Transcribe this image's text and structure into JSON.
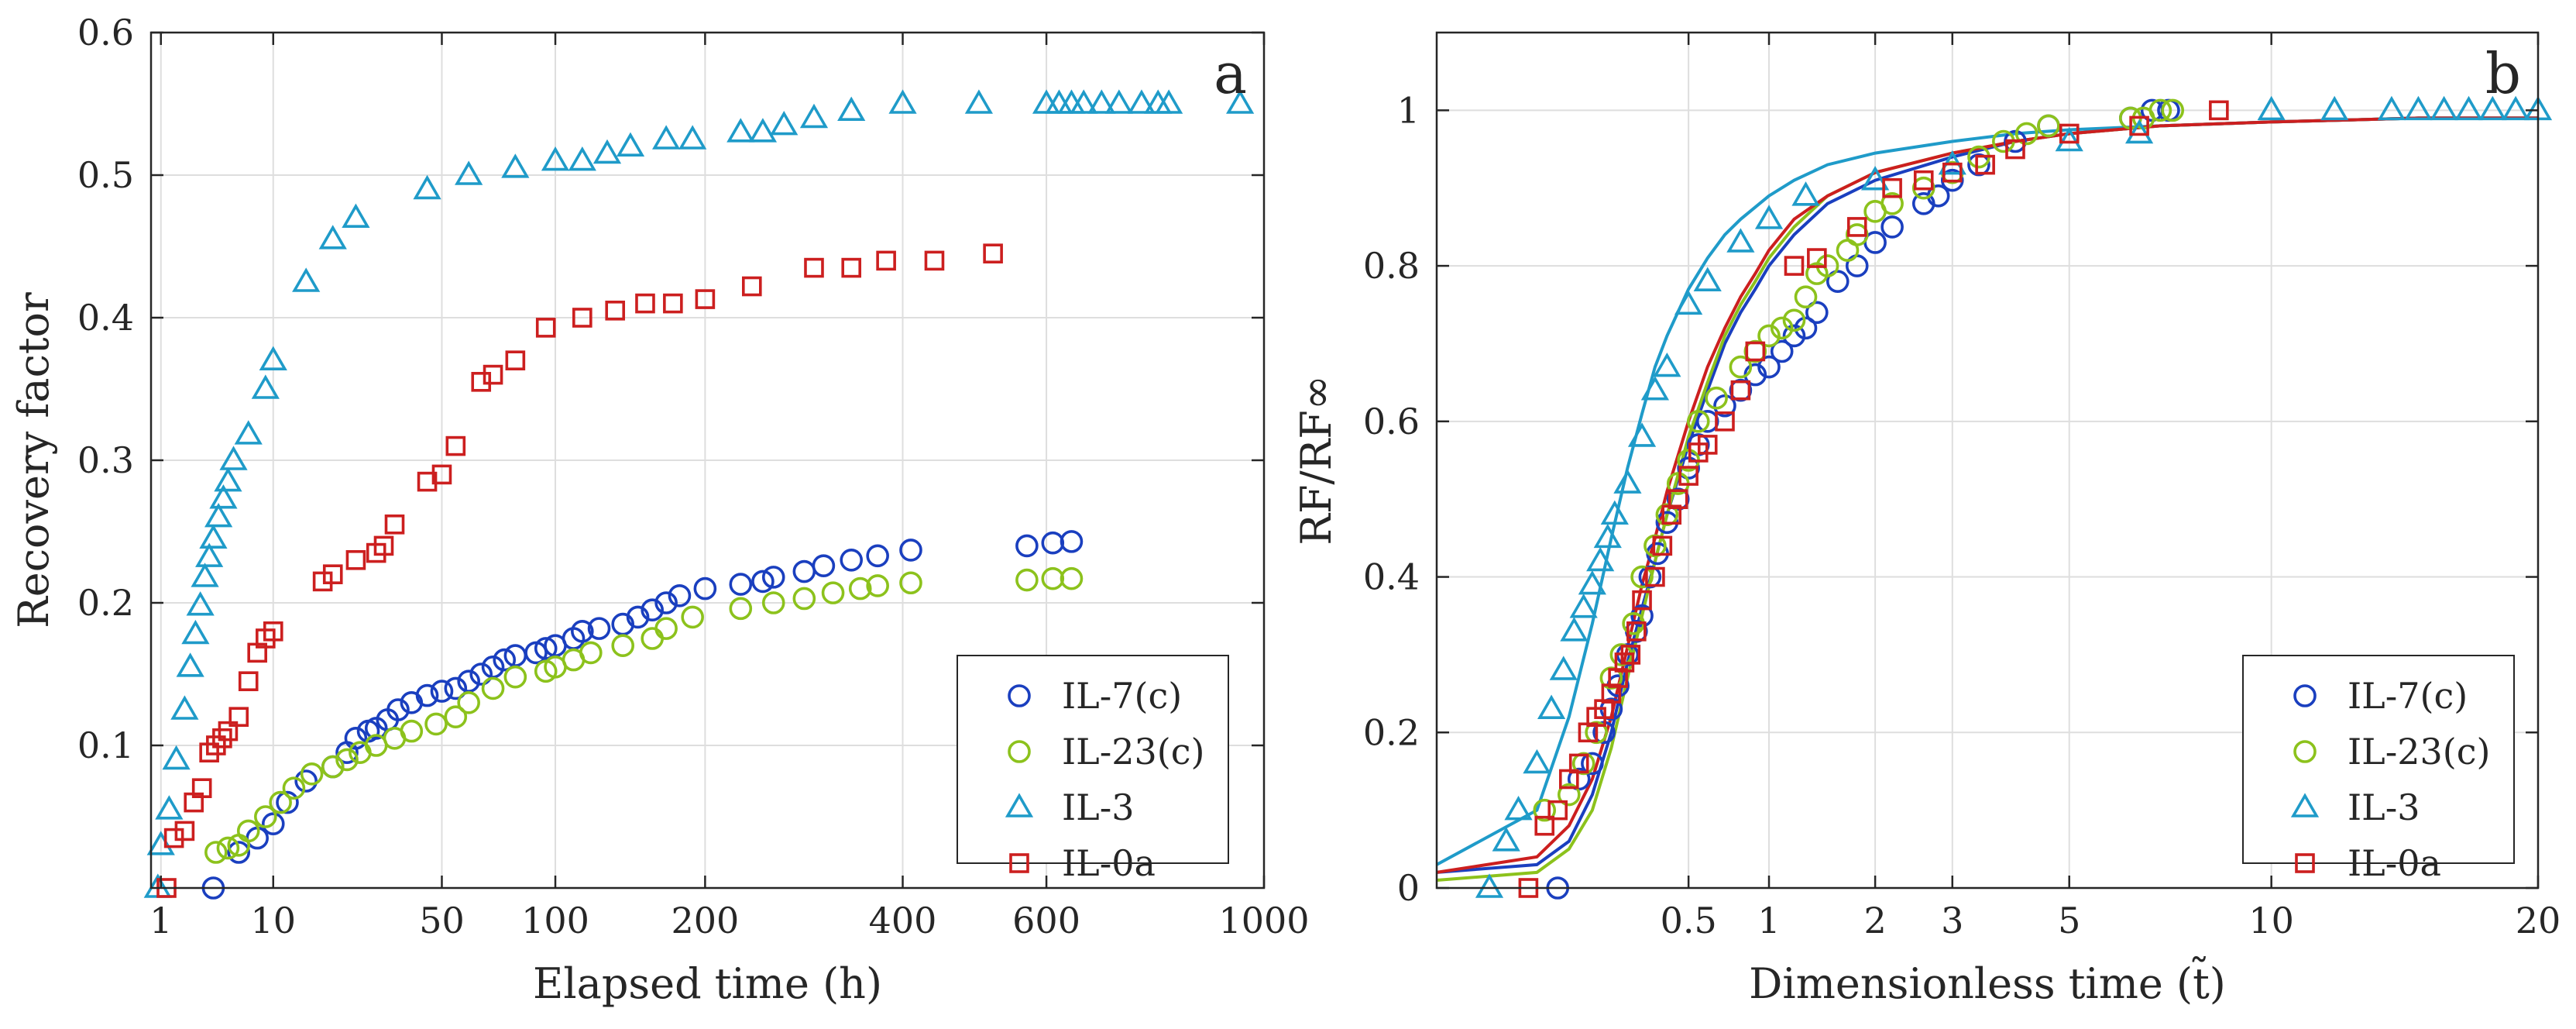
{
  "colors": {
    "IL-7(c)": "#1a3fbf",
    "IL-23(c)": "#8cc21c",
    "IL-3": "#1f9bc9",
    "IL-0a": "#cc1f1f",
    "grid": "#dedede",
    "axis": "#262626"
  },
  "chart_data": [
    {
      "type": "scatter",
      "panel_label": "a",
      "title": "",
      "xlabel": "Elapsed time (h)",
      "ylabel": "Recovery factor",
      "xscale": "power-0.4",
      "xlim": [
        0.7,
        1000
      ],
      "ylim": [
        0,
        0.6
      ],
      "xticks": [
        1,
        10,
        50,
        100,
        200,
        400,
        600,
        1000
      ],
      "xtick_labels": [
        "1",
        "10",
        "50",
        "100",
        "200",
        "400",
        "600",
        "1000"
      ],
      "yticks": [
        0.1,
        0.2,
        0.3,
        0.4,
        0.5,
        0.6
      ],
      "ytick_labels": [
        "0.1",
        "0.2",
        "0.3",
        "0.4",
        "0.5",
        "0.6"
      ],
      "grid": true,
      "legend_position": "bottom-right",
      "series": [
        {
          "name": "IL-7(c)",
          "marker": "circle",
          "x": [
            3.8,
            6,
            8,
            10,
            12,
            15,
            20,
            23,
            25,
            28,
            30,
            33,
            36,
            40,
            45,
            50,
            55,
            60,
            65,
            70,
            75,
            80,
            90,
            95,
            100,
            110,
            115,
            125,
            140,
            150,
            160,
            170,
            180,
            200,
            230,
            250,
            260,
            290,
            310,
            340,
            370,
            410,
            570,
            610,
            640
          ],
          "y": [
            0,
            0.025,
            0.035,
            0.045,
            0.06,
            0.075,
            0.085,
            0.095,
            0.105,
            0.11,
            0.112,
            0.118,
            0.125,
            0.13,
            0.135,
            0.138,
            0.14,
            0.145,
            0.15,
            0.155,
            0.16,
            0.163,
            0.165,
            0.168,
            0.17,
            0.175,
            0.18,
            0.182,
            0.185,
            0.19,
            0.195,
            0.2,
            0.205,
            0.21,
            0.213,
            0.215,
            0.218,
            0.222,
            0.226,
            0.23,
            0.233,
            0.237,
            0.24,
            0.242,
            0.243
          ]
        },
        {
          "name": "IL-23(c)",
          "marker": "circle",
          "x": [
            4,
            5,
            6,
            7,
            9,
            11,
            13,
            16,
            20,
            23,
            26,
            30,
            35,
            40,
            48,
            55,
            60,
            70,
            80,
            95,
            100,
            110,
            120,
            140,
            160,
            170,
            190,
            230,
            260,
            290,
            320,
            350,
            370,
            410,
            570,
            610,
            640
          ],
          "y": [
            0.025,
            0.028,
            0.03,
            0.04,
            0.05,
            0.06,
            0.07,
            0.08,
            0.085,
            0.09,
            0.095,
            0.1,
            0.105,
            0.11,
            0.115,
            0.12,
            0.13,
            0.14,
            0.148,
            0.152,
            0.155,
            0.16,
            0.165,
            0.17,
            0.175,
            0.182,
            0.19,
            0.196,
            0.2,
            0.203,
            0.207,
            0.21,
            0.212,
            0.214,
            0.216,
            0.217,
            0.217
          ]
        },
        {
          "name": "IL-3",
          "marker": "triangle",
          "x": [
            0.9,
            1,
            1.3,
            1.6,
            2,
            2.3,
            2.6,
            2.9,
            3.2,
            3.5,
            3.8,
            4.2,
            4.6,
            5,
            5.5,
            7,
            9,
            10,
            15,
            20,
            25,
            45,
            60,
            80,
            100,
            115,
            130,
            145,
            170,
            190,
            230,
            250,
            270,
            300,
            340,
            400,
            500,
            600,
            620,
            640,
            660,
            690,
            720,
            760,
            790,
            810,
            950
          ],
          "y": [
            0,
            0.03,
            0.055,
            0.09,
            0.125,
            0.155,
            0.178,
            0.198,
            0.218,
            0.232,
            0.245,
            0.26,
            0.273,
            0.285,
            0.3,
            0.318,
            0.35,
            0.37,
            0.425,
            0.455,
            0.47,
            0.49,
            0.5,
            0.505,
            0.51,
            0.51,
            0.515,
            0.52,
            0.525,
            0.525,
            0.53,
            0.53,
            0.535,
            0.54,
            0.545,
            0.55,
            0.55,
            0.55,
            0.55,
            0.55,
            0.55,
            0.55,
            0.55,
            0.55,
            0.55,
            0.55,
            0.55
          ]
        },
        {
          "name": "IL-0a",
          "marker": "square",
          "x": [
            1.2,
            1.5,
            2,
            2.5,
            3,
            3.5,
            4,
            4.5,
            5,
            6,
            7,
            8,
            9,
            10,
            18,
            20,
            25,
            30,
            32,
            35,
            45,
            50,
            55,
            65,
            70,
            80,
            95,
            115,
            135,
            155,
            175,
            200,
            240,
            300,
            340,
            380,
            440,
            520
          ],
          "y": [
            0,
            0.035,
            0.04,
            0.06,
            0.07,
            0.095,
            0.1,
            0.105,
            0.11,
            0.12,
            0.145,
            0.165,
            0.175,
            0.18,
            0.215,
            0.22,
            0.23,
            0.235,
            0.24,
            0.255,
            0.285,
            0.29,
            0.31,
            0.355,
            0.36,
            0.37,
            0.393,
            0.4,
            0.405,
            0.41,
            0.41,
            0.413,
            0.422,
            0.435,
            0.435,
            0.44,
            0.44,
            0.445
          ]
        }
      ]
    },
    {
      "type": "scatter",
      "panel_label": "b",
      "title": "",
      "xlabel": "Dimensionless time (t̃)",
      "ylabel": "RF/RF∞",
      "xscale": "power-0.4",
      "xlim": [
        0,
        20
      ],
      "ylim": [
        0,
        1.1
      ],
      "xticks": [
        0.5,
        1,
        2,
        3,
        5,
        10,
        20
      ],
      "xtick_labels": [
        "0.5",
        "1",
        "2",
        "3",
        "5",
        "10",
        "20"
      ],
      "yticks": [
        0,
        0.2,
        0.4,
        0.6,
        0.8,
        1
      ],
      "ytick_labels": [
        "0",
        "0.2",
        "0.4",
        "0.6",
        "0.8",
        "1"
      ],
      "grid": true,
      "legend_position": "bottom-right",
      "series": [
        {
          "name": "IL-7(c)",
          "marker": "circle",
          "x": [
            0.08,
            0.12,
            0.15,
            0.18,
            0.2,
            0.22,
            0.25,
            0.28,
            0.3,
            0.33,
            0.36,
            0.4,
            0.45,
            0.5,
            0.55,
            0.6,
            0.7,
            0.8,
            0.9,
            1,
            1.1,
            1.2,
            1.3,
            1.4,
            1.6,
            1.8,
            2,
            2.2,
            2.6,
            2.8,
            3,
            3.4,
            4,
            4.6,
            6.3,
            6.8,
            7.2
          ],
          "y": [
            0,
            0.14,
            0.16,
            0.2,
            0.23,
            0.26,
            0.3,
            0.33,
            0.35,
            0.4,
            0.43,
            0.47,
            0.5,
            0.54,
            0.57,
            0.6,
            0.62,
            0.64,
            0.66,
            0.67,
            0.69,
            0.71,
            0.72,
            0.74,
            0.78,
            0.8,
            0.83,
            0.85,
            0.88,
            0.89,
            0.91,
            0.93,
            0.96,
            0.98,
            0.99,
            1,
            1
          ]
        },
        {
          "name": "IL-23(c)",
          "marker": "circle",
          "x": [
            0.06,
            0.1,
            0.13,
            0.16,
            0.2,
            0.23,
            0.27,
            0.3,
            0.35,
            0.4,
            0.45,
            0.5,
            0.55,
            0.65,
            0.8,
            0.9,
            1,
            1.1,
            1.2,
            1.3,
            1.4,
            1.5,
            1.7,
            1.8,
            2,
            2.2,
            2.6,
            3,
            3.4,
            3.8,
            4.2,
            4.6,
            6.3,
            6.6,
            7,
            7.3
          ],
          "y": [
            0.1,
            0.12,
            0.16,
            0.2,
            0.27,
            0.3,
            0.34,
            0.4,
            0.44,
            0.48,
            0.52,
            0.55,
            0.6,
            0.63,
            0.67,
            0.69,
            0.71,
            0.72,
            0.73,
            0.76,
            0.79,
            0.8,
            0.82,
            0.84,
            0.87,
            0.88,
            0.9,
            0.92,
            0.94,
            0.96,
            0.97,
            0.98,
            0.99,
            0.99,
            1,
            1
          ]
        },
        {
          "name": "IL-3",
          "marker": "triangle",
          "x": [
            0.01,
            0.02,
            0.03,
            0.05,
            0.07,
            0.09,
            0.11,
            0.13,
            0.15,
            0.17,
            0.19,
            0.21,
            0.25,
            0.3,
            0.35,
            0.4,
            0.5,
            0.6,
            0.8,
            1,
            1.3,
            2,
            3,
            5,
            6.5,
            10,
            12,
            14,
            15,
            16,
            17,
            18,
            19,
            20
          ],
          "y": [
            0,
            0.06,
            0.1,
            0.16,
            0.23,
            0.28,
            0.33,
            0.36,
            0.39,
            0.42,
            0.45,
            0.48,
            0.52,
            0.58,
            0.64,
            0.67,
            0.75,
            0.78,
            0.83,
            0.86,
            0.89,
            0.91,
            0.93,
            0.96,
            0.97,
            1,
            1,
            1,
            1,
            1,
            1,
            1,
            1,
            1
          ]
        },
        {
          "name": "IL-0a",
          "marker": "square",
          "x": [
            0.04,
            0.06,
            0.08,
            0.1,
            0.12,
            0.14,
            0.16,
            0.18,
            0.2,
            0.22,
            0.24,
            0.26,
            0.28,
            0.3,
            0.35,
            0.38,
            0.42,
            0.45,
            0.5,
            0.55,
            0.6,
            0.7,
            0.8,
            0.9,
            1.2,
            1.4,
            1.8,
            2.2,
            2.6,
            3,
            3.5,
            4,
            5,
            6.5,
            8.5
          ],
          "y": [
            0,
            0.08,
            0.1,
            0.14,
            0.16,
            0.2,
            0.22,
            0.23,
            0.25,
            0.27,
            0.29,
            0.3,
            0.33,
            0.37,
            0.4,
            0.44,
            0.48,
            0.5,
            0.53,
            0.56,
            0.57,
            0.6,
            0.64,
            0.69,
            0.8,
            0.81,
            0.85,
            0.9,
            0.91,
            0.92,
            0.93,
            0.95,
            0.97,
            0.98,
            1
          ]
        }
      ],
      "fit_curves": [
        {
          "name": "IL-7(c)",
          "x": [
            0,
            0.05,
            0.1,
            0.15,
            0.2,
            0.25,
            0.3,
            0.35,
            0.4,
            0.5,
            0.6,
            0.7,
            0.8,
            0.9,
            1,
            1.2,
            1.5,
            2,
            3,
            4,
            5,
            7,
            10,
            15,
            20
          ],
          "y": [
            0.02,
            0.03,
            0.06,
            0.12,
            0.2,
            0.29,
            0.36,
            0.42,
            0.48,
            0.57,
            0.64,
            0.7,
            0.74,
            0.77,
            0.8,
            0.84,
            0.88,
            0.91,
            0.94,
            0.96,
            0.97,
            0.98,
            0.985,
            0.99,
            0.99
          ]
        },
        {
          "name": "IL-23(c)",
          "x": [
            0,
            0.05,
            0.1,
            0.15,
            0.2,
            0.25,
            0.3,
            0.35,
            0.4,
            0.5,
            0.6,
            0.7,
            0.8,
            0.9,
            1,
            1.2,
            1.5,
            2,
            3,
            4,
            5,
            7,
            10,
            15,
            20
          ],
          "y": [
            0.01,
            0.02,
            0.05,
            0.1,
            0.18,
            0.27,
            0.35,
            0.42,
            0.48,
            0.58,
            0.65,
            0.71,
            0.75,
            0.78,
            0.81,
            0.85,
            0.89,
            0.92,
            0.945,
            0.96,
            0.97,
            0.98,
            0.985,
            0.99,
            0.99
          ]
        },
        {
          "name": "IL-3",
          "x": [
            0,
            0.05,
            0.1,
            0.15,
            0.2,
            0.25,
            0.3,
            0.35,
            0.4,
            0.5,
            0.6,
            0.7,
            0.8,
            1,
            1.2,
            1.5,
            2,
            3,
            4,
            5,
            7,
            10,
            15,
            20
          ],
          "y": [
            0.03,
            0.1,
            0.22,
            0.34,
            0.45,
            0.54,
            0.61,
            0.67,
            0.71,
            0.77,
            0.81,
            0.84,
            0.86,
            0.89,
            0.91,
            0.93,
            0.945,
            0.96,
            0.97,
            0.975,
            0.98,
            0.985,
            0.99,
            0.99
          ]
        },
        {
          "name": "IL-0a",
          "x": [
            0,
            0.05,
            0.1,
            0.15,
            0.2,
            0.25,
            0.3,
            0.35,
            0.4,
            0.5,
            0.6,
            0.7,
            0.8,
            0.9,
            1,
            1.2,
            1.5,
            2,
            3,
            4,
            5,
            7,
            10,
            15,
            20
          ],
          "y": [
            0.02,
            0.04,
            0.08,
            0.14,
            0.22,
            0.31,
            0.39,
            0.45,
            0.51,
            0.6,
            0.67,
            0.72,
            0.76,
            0.79,
            0.82,
            0.86,
            0.89,
            0.92,
            0.945,
            0.96,
            0.97,
            0.98,
            0.985,
            0.99,
            0.99
          ]
        }
      ]
    }
  ]
}
